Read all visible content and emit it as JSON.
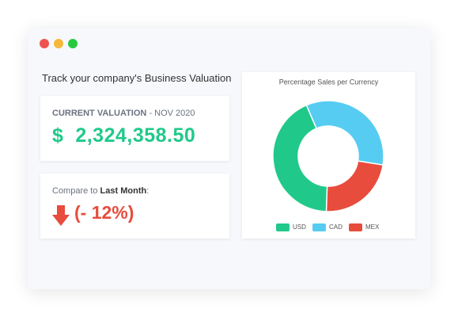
{
  "header": {
    "title": "Track your company's Business Valuation"
  },
  "valuation": {
    "label": "CURRENT VALUATION",
    "period": "- NOV 2020",
    "currency": "$",
    "amount": "2,324,358.50"
  },
  "comparison": {
    "prefix": "Compare to",
    "strong": "Last Month",
    "suffix": ":",
    "change": "(- 12%)"
  },
  "chart_data": {
    "type": "donut",
    "title": "Percentage Sales per Currency",
    "categories": [
      "USD",
      "CAD",
      "MEX"
    ],
    "values": [
      43,
      34,
      23
    ],
    "colors": [
      "#20c98a",
      "#56ccf2",
      "#e74c3c"
    ],
    "legend": "bottom"
  }
}
